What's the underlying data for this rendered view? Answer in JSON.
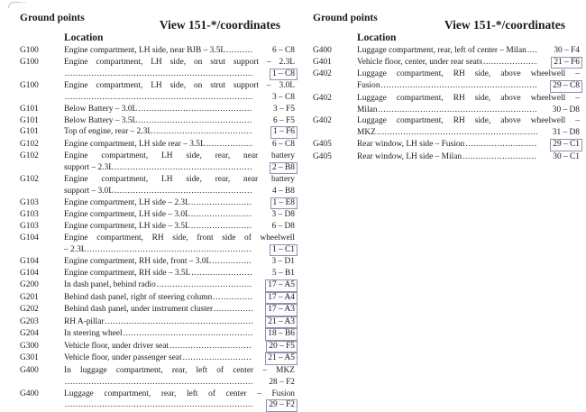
{
  "style": {
    "text_color": "#1b1b1b",
    "box_border_color": "#8e92b0",
    "box_fill_color": "#fcfcfe",
    "page_background": "#ffffff"
  },
  "columns": [
    {
      "header": "Ground points",
      "view_title": "View 151-*/coordinates",
      "location_label": "Location",
      "rows": [
        {
          "id": "G100",
          "line1": "Engine compartment, LH side, near BJB – 3.5L",
          "line2": null,
          "coord": "6 – C8",
          "boxed": false
        },
        {
          "id": "G100",
          "line1": "Engine compartment, LH side, on strut support – 2.3L",
          "line2": "",
          "coord": "1 – C8",
          "boxed": true
        },
        {
          "id": "G100",
          "line1": "Engine compartment, LH side, on strut support – 3.0L",
          "line2": "",
          "coord": "3 – C8",
          "boxed": false
        },
        {
          "id": "G101",
          "line1": "Below Battery – 3.0L",
          "line2": null,
          "coord": "3 – F5",
          "boxed": false
        },
        {
          "id": "G101",
          "line1": "Below Battery – 3.5L",
          "line2": null,
          "coord": "6 – F5",
          "boxed": false
        },
        {
          "id": "G101",
          "line1": "Top of engine, rear – 2.3L",
          "line2": null,
          "coord": "1 – F6",
          "boxed": true
        },
        {
          "id": "G102",
          "line1": "Engine compartment, LH side rear – 3.5L",
          "line2": null,
          "coord": "6 – C8",
          "boxed": false
        },
        {
          "id": "G102",
          "line1": "Engine compartment, LH side, rear, near battery",
          "line2": "support – 2.3L",
          "coord": "2 – B8",
          "boxed": true
        },
        {
          "id": "G102",
          "line1": "Engine compartment, LH side, rear, near battery",
          "line2": "support – 3.0L",
          "coord": "4 – B8",
          "boxed": false
        },
        {
          "id": "G103",
          "line1": "Engine compartment, LH side – 2.3L",
          "line2": null,
          "coord": "1 – E8",
          "boxed": true
        },
        {
          "id": "G103",
          "line1": "Engine compartment, LH side – 3.0L",
          "line2": null,
          "coord": "3 – D8",
          "boxed": false
        },
        {
          "id": "G103",
          "line1": "Engine compartment, LH side – 3.5L",
          "line2": null,
          "coord": "6 – D8",
          "boxed": false
        },
        {
          "id": "G104",
          "line1": "Engine compartment, RH side, front side of wheelwell",
          "line2": "– 2.3L",
          "coord": "1 – C1",
          "boxed": true
        },
        {
          "id": "G104",
          "line1": "Engine compartment, RH side, front – 3.0L",
          "line2": null,
          "coord": "3 – D1",
          "boxed": false
        },
        {
          "id": "G104",
          "line1": "Engine compartment, RH side – 3.5L",
          "line2": null,
          "coord": "5 – B1",
          "boxed": false
        },
        {
          "id": "G200",
          "line1": "In dash panel, behind radio",
          "line2": null,
          "coord": "17 – A5",
          "boxed": true
        },
        {
          "id": "G201",
          "line1": "Behind dash panel, right of steering column",
          "line2": null,
          "coord": "17 – A4",
          "boxed": true
        },
        {
          "id": "G202",
          "line1": "Behind dash panel, under instrument cluster",
          "line2": null,
          "coord": "17 – A3",
          "boxed": true
        },
        {
          "id": "G203",
          "line1": "RH A-pillar",
          "line2": null,
          "coord": "21 – A3",
          "boxed": true
        },
        {
          "id": "G204",
          "line1": "In steering wheel",
          "line2": null,
          "coord": "18 – B6",
          "boxed": true
        },
        {
          "id": "G300",
          "line1": "Vehicle floor, under driver seat",
          "line2": null,
          "coord": "20 – F5",
          "boxed": true
        },
        {
          "id": "G301",
          "line1": "Vehicle floor, under passenger seat",
          "line2": null,
          "coord": "21 – A5",
          "boxed": true
        },
        {
          "id": "G400",
          "line1": "In luggage compartment, rear, left of center – MKZ",
          "line2": "",
          "coord": "28 – F2",
          "boxed": false
        },
        {
          "id": "G400",
          "line1": "Luggage compartment, rear, left of center – Fusion",
          "line2": "",
          "coord": "29 – F2",
          "boxed": true
        }
      ]
    },
    {
      "header": "Ground points",
      "view_title": "View 151-*/coordinates",
      "location_label": "Location",
      "rows": [
        {
          "id": "G400",
          "line1": "Luggage compartment, rear, left of center – Milan",
          "line2": null,
          "coord": "30 – F4",
          "boxed": false
        },
        {
          "id": "G401",
          "line1": "Vehicle floor, center, under rear seats",
          "line2": null,
          "coord": "21 – F6",
          "boxed": true
        },
        {
          "id": "G402",
          "line1": "Luggage compartment, RH side, above wheelwell –",
          "line2": "Fusion",
          "coord": "29 – C8",
          "boxed": true
        },
        {
          "id": "G402",
          "line1": "Luggage compartment, RH side, above wheelwell –",
          "line2": "Milan",
          "coord": "30 – D8",
          "boxed": false
        },
        {
          "id": "G402",
          "line1": "Luggage compartment, RH side, above wheelwell –",
          "line2": "MKZ",
          "coord": "31 – D8",
          "boxed": false
        },
        {
          "id": "G405",
          "line1": "Rear window, LH side – Fusion",
          "line2": null,
          "coord": "29 – C1",
          "boxed": true
        },
        {
          "id": "G405",
          "line1": "Rear window, LH side – Milan",
          "line2": null,
          "coord": "30 – C1",
          "boxed": false
        }
      ]
    }
  ]
}
